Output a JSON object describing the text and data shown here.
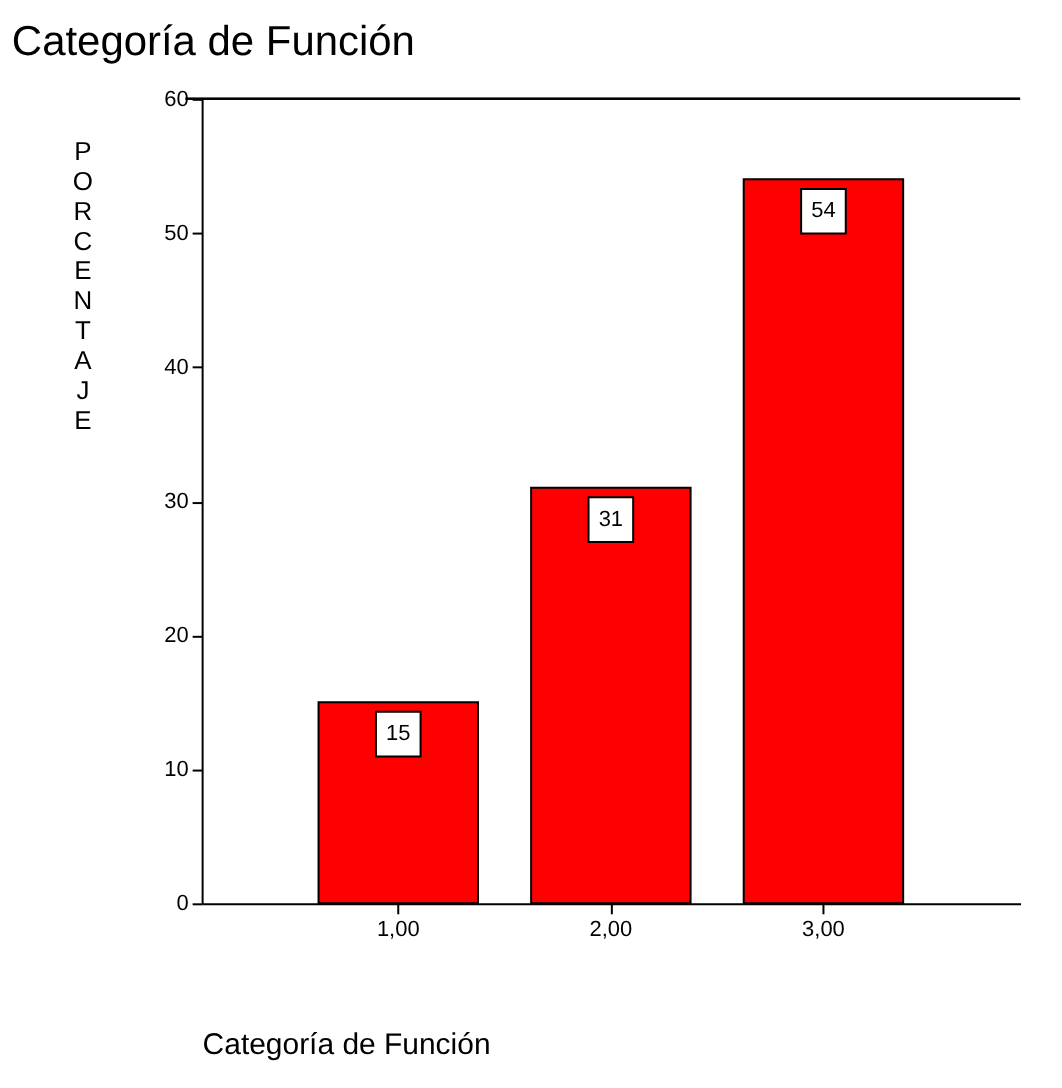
{
  "chart_data": {
    "type": "bar",
    "title": "Categoría de Función",
    "xlabel": "Categoría de Función",
    "ylabel": "PORCENTAJE",
    "categories": [
      "1,00",
      "2,00",
      "3,00"
    ],
    "series": [
      {
        "color": "#ff0000",
        "values": [
          15,
          31,
          54
        ]
      }
    ],
    "ylim": [
      0,
      60
    ],
    "yticks": [
      0,
      10,
      20,
      30,
      40,
      50,
      60
    ],
    "grid": false,
    "data_labels": true
  }
}
